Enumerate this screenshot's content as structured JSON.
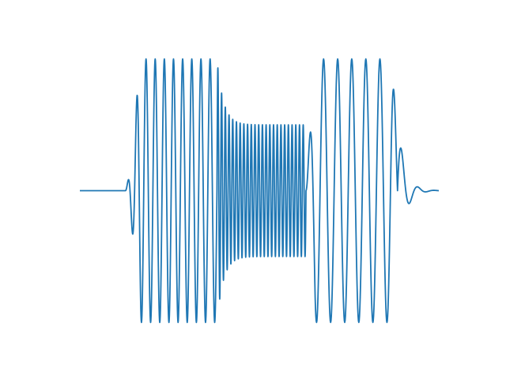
{
  "chart_data": {
    "type": "line",
    "axes_visible": false,
    "grid": false,
    "xlim": [
      0,
      10
    ],
    "ylim": [
      -1.1,
      1.1
    ],
    "series": [
      {
        "color": "#1f77b4",
        "segments": [
          {
            "kind": "flat",
            "x": [
              0,
              1.27
            ],
            "value": 0
          },
          {
            "kind": "burst",
            "x": [
              1.27,
              3.82
            ],
            "cycles": 10,
            "amplitude": 1.0,
            "envelope": "fast-rise"
          },
          {
            "kind": "burst",
            "x": [
              3.82,
              6.3
            ],
            "cycles": 24,
            "amplitude": 0.5,
            "envelope": "decay-from-full"
          },
          {
            "kind": "burst",
            "x": [
              6.3,
              8.85
            ],
            "cycles": 6.5,
            "amplitude": 1.0,
            "envelope": "plateau"
          },
          {
            "kind": "ringdown",
            "x": [
              8.85,
              10
            ],
            "cycles": 2.5,
            "amplitude": 0.55,
            "envelope": "exp-decay"
          }
        ]
      }
    ]
  }
}
